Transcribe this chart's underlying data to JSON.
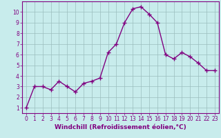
{
  "x": [
    0,
    1,
    2,
    3,
    4,
    5,
    6,
    7,
    8,
    9,
    10,
    11,
    12,
    13,
    14,
    15,
    16,
    17,
    18,
    19,
    20,
    21,
    22,
    23
  ],
  "y": [
    1,
    3,
    3,
    2.7,
    3.5,
    3,
    2.5,
    3.3,
    3.5,
    3.8,
    6.2,
    7,
    9,
    10.3,
    10.5,
    9.8,
    9,
    6.0,
    5.6,
    6.2,
    5.8,
    5.2,
    4.5,
    4.5
  ],
  "line_color": "#800080",
  "marker": "+",
  "markersize": 4,
  "linewidth": 1.0,
  "markeredgewidth": 1.0,
  "xlabel": "Windchill (Refroidissement éolien,°C)",
  "xlabel_fontsize": 6.5,
  "ylim": [
    0.5,
    11
  ],
  "xlim": [
    -0.5,
    23.5
  ],
  "yticks": [
    1,
    2,
    3,
    4,
    5,
    6,
    7,
    8,
    9,
    10
  ],
  "xticks": [
    0,
    1,
    2,
    3,
    4,
    5,
    6,
    7,
    8,
    9,
    10,
    11,
    12,
    13,
    14,
    15,
    16,
    17,
    18,
    19,
    20,
    21,
    22,
    23
  ],
  "background_color": "#c8ecec",
  "grid_color": "#9bbebe",
  "tick_fontsize": 5.5,
  "tick_color": "#800080",
  "label_color": "#800080",
  "spine_color": "#800080"
}
